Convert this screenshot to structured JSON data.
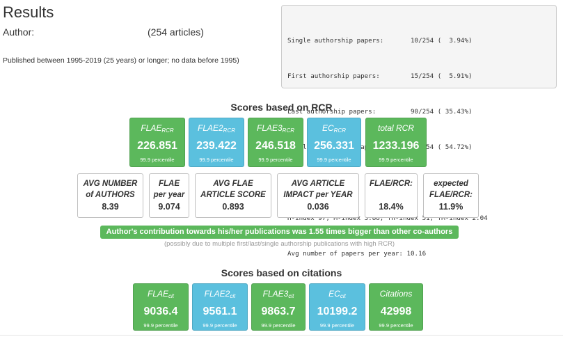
{
  "header": {
    "title": "Results",
    "author_label": "Author:",
    "article_count": "(254 articles)",
    "published": "Published between 1995-2019 (25 years) or longer; no data before 1995)"
  },
  "stats_box": {
    "lines": [
      "Single authorship papers:       10/254 (  3.94%)",
      "First authorship papers:        15/254 (  5.91%)",
      "Last authorship papers:         90/254 ( 35.43%)",
      "Middle authorship papers:      139/254 ( 54.72%)",
      "",
      "H-index 97, M-index 3.88, fH-index 51, fM-index 2.04",
      "Avg number of papers per year: 10.16"
    ]
  },
  "rcr": {
    "heading": "Scores based on RCR",
    "tiles": [
      {
        "label": "FLAE",
        "sub": "RCR",
        "value": "226.851",
        "percentile": "99.9 percentile",
        "color": "#5cb85c"
      },
      {
        "label": "FLAE2",
        "sub": "RCR",
        "value": "239.422",
        "percentile": "99.9 percentile",
        "color": "#5bc0de"
      },
      {
        "label": "FLAE3",
        "sub": "RCR",
        "value": "246.518",
        "percentile": "99.9 percentile",
        "color": "#5cb85c"
      },
      {
        "label": "EC",
        "sub": "RCR",
        "value": "256.331",
        "percentile": "99.9 percentile",
        "color": "#5bc0de"
      },
      {
        "label": "total RCR",
        "sub": "",
        "value": "1233.196",
        "percentile": "99.9 percentile",
        "color": "#5cb85c"
      }
    ],
    "metrics": [
      {
        "line1": "AVG NUMBER",
        "line2": "of AUTHORS",
        "value": "8.39"
      },
      {
        "line1": "FLAE",
        "line2": "per year",
        "value": "9.074"
      },
      {
        "line1": "AVG FLAE",
        "line2": "ARTICLE SCORE",
        "value": "0.893"
      },
      {
        "line1": "AVG ARTICLE",
        "line2": "IMPACT per YEAR",
        "value": "0.036"
      },
      {
        "line1": "FLAE/RCR:",
        "line2": "",
        "value": "18.4%"
      },
      {
        "line1": "expected",
        "line2": "FLAE/RCR:",
        "value": "11.9%"
      }
    ],
    "contribution": "Author's contribution towards his/her publications was 1.55 times bigger than other co-authors",
    "contribution_note": "(possibly due to multiple first/last/single authorship publications with high RCR)"
  },
  "citations": {
    "heading": "Scores based on citations",
    "tiles": [
      {
        "label": "FLAE",
        "sub": "cit",
        "value": "9036.4",
        "percentile": "99.9 percentile",
        "color": "#5cb85c"
      },
      {
        "label": "FLAE2",
        "sub": "cit",
        "value": "9561.1",
        "percentile": "99.9 percentile",
        "color": "#5bc0de"
      },
      {
        "label": "FLAE3",
        "sub": "cit",
        "value": "9863.7",
        "percentile": "99.9 percentile",
        "color": "#5cb85c"
      },
      {
        "label": "EC",
        "sub": "cit",
        "value": "10199.2",
        "percentile": "99.9 percentile",
        "color": "#5bc0de"
      },
      {
        "label": "Citations",
        "sub": "",
        "value": "42998",
        "percentile": "99.9 percentile",
        "color": "#5cb85c"
      }
    ]
  }
}
